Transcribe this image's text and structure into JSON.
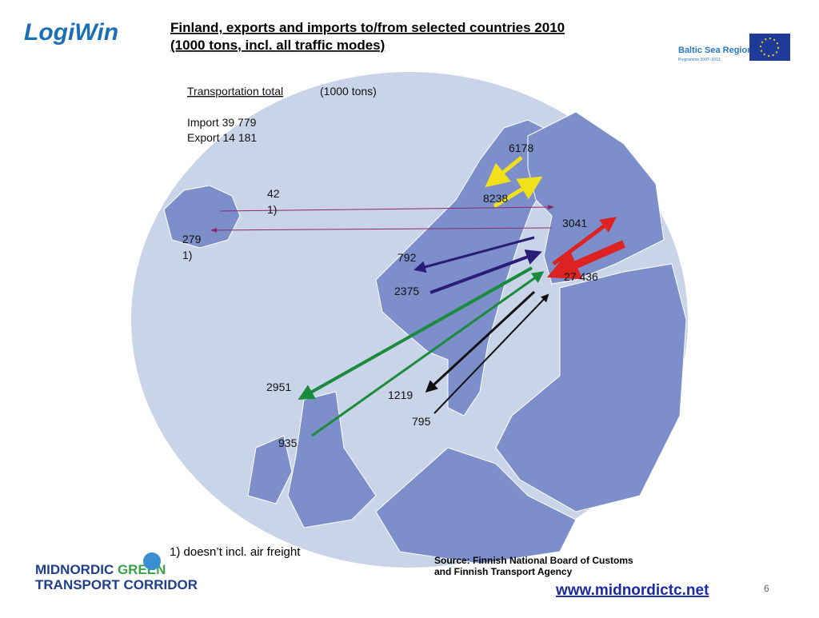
{
  "header": {
    "logo": "LogiWin",
    "title_lines": [
      "Finland, exports and imports to/from selected countries 2010",
      "(1000 tons, incl. all traffic modes)"
    ],
    "partner_logo": "Baltic Sea Region",
    "partner_logo_sub": "Programme 2007–2013"
  },
  "map": {
    "summary": {
      "heading_underlined": "Transportation total ",
      "heading_rest": "(1000 tons)",
      "import": "Import 39 779",
      "export": "Export 14 181"
    },
    "flows": [
      {
        "label": "6178"
      },
      {
        "label": "8238"
      },
      {
        "label": "3041"
      },
      {
        "label": "27 436"
      },
      {
        "label": "42",
        "note": "1)"
      },
      {
        "label": "279",
        "note": "1)"
      },
      {
        "label": "792"
      },
      {
        "label": "2375"
      },
      {
        "label": "2951"
      },
      {
        "label": "935"
      },
      {
        "label": "1219"
      },
      {
        "label": "795"
      }
    ]
  },
  "footnote": "1) doesn’t incl. air freight",
  "source_lines": [
    "Source: Finnish National Board of Customs",
    "and Finnish Transport Agency"
  ],
  "footer": {
    "logo_line1_a": "MIDNORDIC ",
    "logo_line1_b": "GREEN",
    "logo_line2": "TRANSPORT CORRIDOR",
    "url": "www.midnordictc.net",
    "page": "6"
  }
}
